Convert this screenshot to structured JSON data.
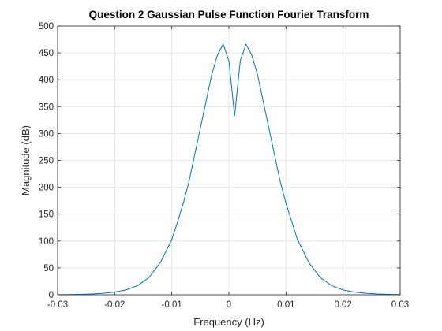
{
  "chart_data": {
    "type": "line",
    "title": "Question 2 Gaussian Pulse Function Fourier Transform",
    "xlabel": "Frequency (Hz)",
    "ylabel": "Magnitude (dB)",
    "xlim": [
      -0.03,
      0.03
    ],
    "ylim": [
      0,
      500
    ],
    "xticks": [
      -0.03,
      -0.02,
      -0.01,
      0,
      0.01,
      0.02,
      0.03
    ],
    "yticks": [
      0,
      50,
      100,
      150,
      200,
      250,
      300,
      350,
      400,
      450,
      500
    ],
    "xtick_labels": [
      "-0.03",
      "-0.02",
      "-0.01",
      "0",
      "0.01",
      "0.02",
      "0.03"
    ],
    "ytick_labels": [
      "0",
      "50",
      "100",
      "150",
      "200",
      "250",
      "300",
      "350",
      "400",
      "450",
      "500"
    ],
    "grid": true,
    "line_color": "#0072BD",
    "series": [
      {
        "x": [
          -0.03,
          -0.028,
          -0.026,
          -0.024,
          -0.022,
          -0.02,
          -0.018,
          -0.016,
          -0.014,
          -0.012,
          -0.01,
          -0.009,
          -0.008,
          -0.007,
          -0.006,
          -0.005,
          -0.004,
          -0.003,
          -0.002,
          -0.001,
          0,
          0.001,
          0.002,
          0.003,
          0.004,
          0.005,
          0.006,
          0.007,
          0.008,
          0.009,
          0.01,
          0.012,
          0.014,
          0.016,
          0.018,
          0.02,
          0.022,
          0.024,
          0.026,
          0.028,
          0.03
        ],
        "y": [
          0.2,
          0.4,
          0.8,
          1.5,
          2.8,
          5,
          9,
          17,
          32,
          60,
          103,
          135,
          170,
          210,
          260,
          310,
          360,
          410,
          446,
          466,
          435,
          333,
          436,
          466,
          446,
          410,
          360,
          310,
          260,
          210,
          170,
          103,
          60,
          32,
          17,
          9,
          5,
          2.8,
          1.5,
          0.8,
          0.4
        ]
      }
    ]
  }
}
